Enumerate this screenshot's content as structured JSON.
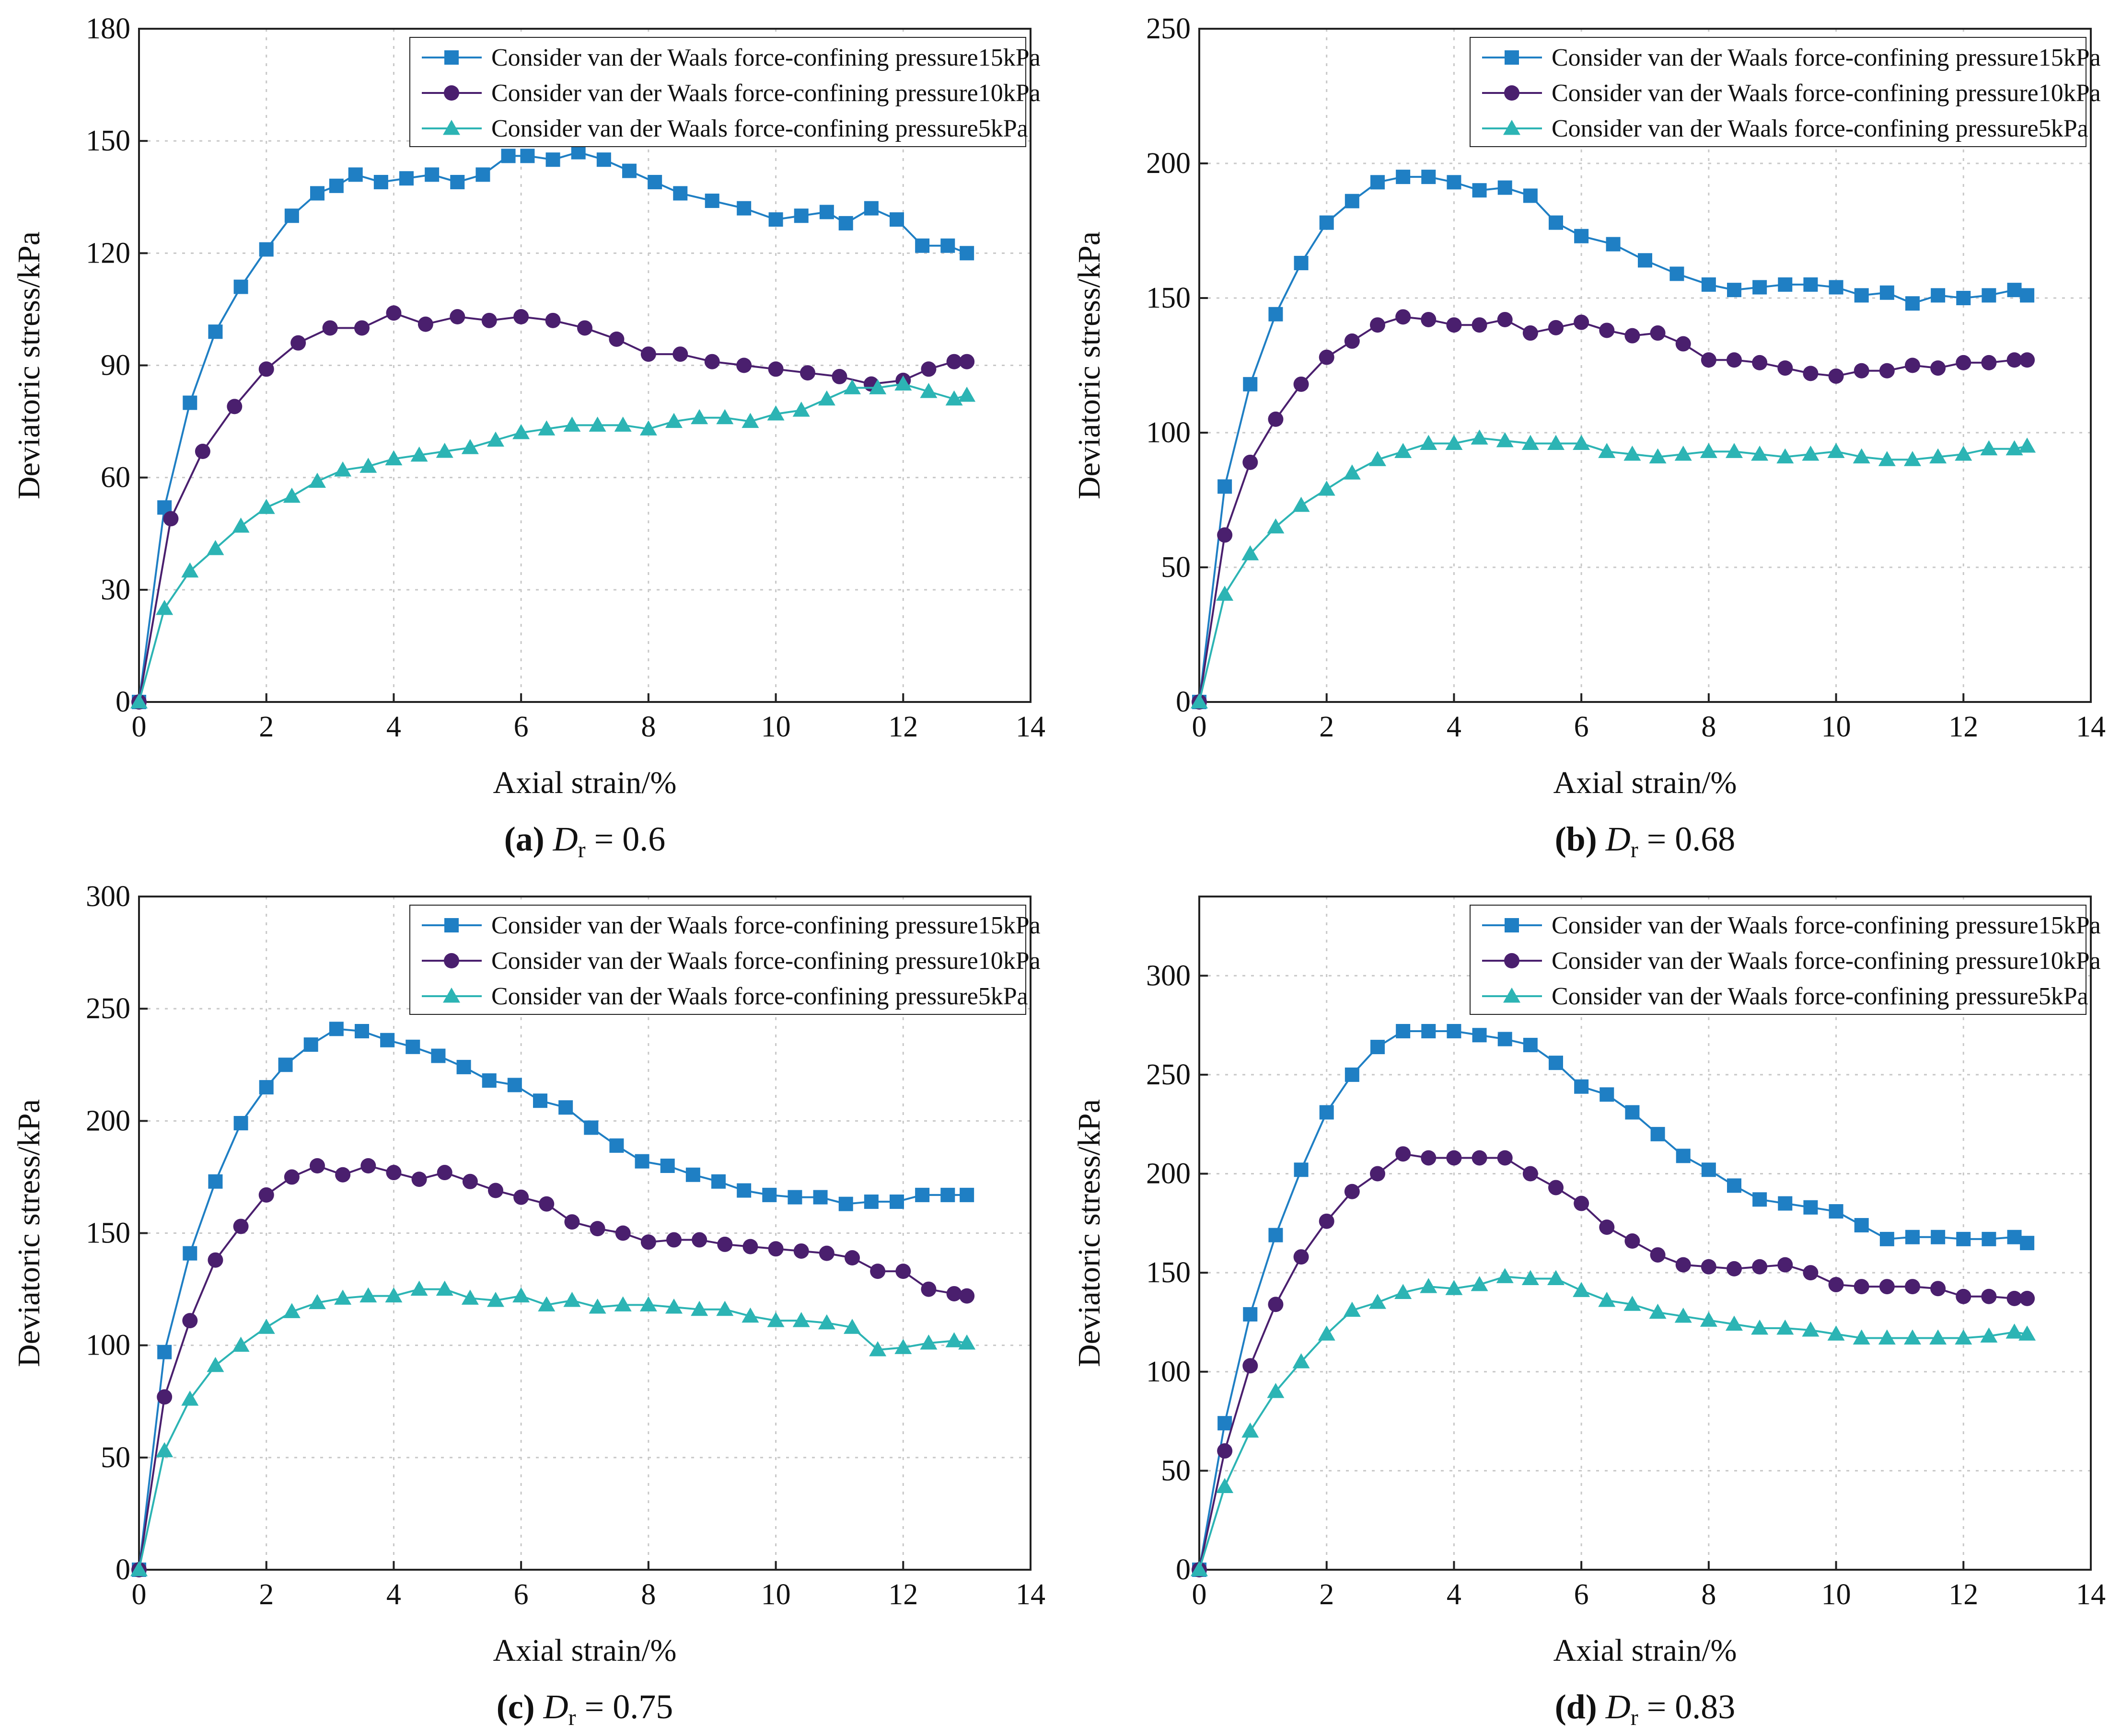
{
  "chart_data": [
    {
      "type": "line",
      "caption": {
        "label": "(a)",
        "variable": "D",
        "subscript": "r",
        "value": "= 0.6"
      },
      "xlabel": "Axial strain/%",
      "ylabel": "Deviatoric stress/kPa",
      "xlim": [
        0,
        14
      ],
      "ylim": [
        0,
        180
      ],
      "xticks": [
        0,
        2,
        4,
        6,
        8,
        10,
        12,
        14
      ],
      "yticks": [
        0,
        30,
        60,
        90,
        120,
        150,
        180
      ],
      "series": [
        {
          "name": "Consider van der Waals force-confining pressure15kPa",
          "color": "#1f7fc4",
          "marker": "square",
          "x": [
            0,
            0.4,
            0.8,
            1.2,
            1.6,
            2.0,
            2.4,
            2.8,
            3.1,
            3.4,
            3.8,
            4.2,
            4.6,
            5.0,
            5.4,
            5.8,
            6.1,
            6.5,
            6.9,
            7.3,
            7.7,
            8.1,
            8.5,
            9.0,
            9.5,
            10.0,
            10.4,
            10.8,
            11.1,
            11.5,
            11.9,
            12.3,
            12.7,
            13.0
          ],
          "y": [
            0,
            52,
            80,
            99,
            111,
            121,
            130,
            136,
            138,
            141,
            139,
            140,
            141,
            139,
            141,
            146,
            146,
            145,
            147,
            145,
            142,
            139,
            136,
            134,
            132,
            129,
            130,
            131,
            128,
            132,
            129,
            122,
            122,
            120
          ]
        },
        {
          "name": "Consider van der Waals force-confining pressure10kPa",
          "color": "#4a1f6e",
          "marker": "circle",
          "x": [
            0,
            0.5,
            1.0,
            1.5,
            2.0,
            2.5,
            3.0,
            3.5,
            4.0,
            4.5,
            5.0,
            5.5,
            6.0,
            6.5,
            7.0,
            7.5,
            8.0,
            8.5,
            9.0,
            9.5,
            10.0,
            10.5,
            11.0,
            11.5,
            12.0,
            12.4,
            12.8,
            13.0
          ],
          "y": [
            0,
            49,
            67,
            79,
            89,
            96,
            100,
            100,
            104,
            101,
            103,
            102,
            103,
            102,
            100,
            97,
            93,
            93,
            91,
            90,
            89,
            88,
            87,
            85,
            86,
            89,
            91,
            91
          ]
        },
        {
          "name": "Consider van der Waals force-confining pressure5kPa",
          "color": "#2cb4b4",
          "marker": "triangle",
          "x": [
            0,
            0.4,
            0.8,
            1.2,
            1.6,
            2.0,
            2.4,
            2.8,
            3.2,
            3.6,
            4.0,
            4.4,
            4.8,
            5.2,
            5.6,
            6.0,
            6.4,
            6.8,
            7.2,
            7.6,
            8.0,
            8.4,
            8.8,
            9.2,
            9.6,
            10.0,
            10.4,
            10.8,
            11.2,
            11.6,
            12.0,
            12.4,
            12.8,
            13.0
          ],
          "y": [
            0,
            25,
            35,
            41,
            47,
            52,
            55,
            59,
            62,
            63,
            65,
            66,
            67,
            68,
            70,
            72,
            73,
            74,
            74,
            74,
            73,
            75,
            76,
            76,
            75,
            77,
            78,
            81,
            84,
            84,
            85,
            83,
            81,
            82
          ]
        }
      ]
    },
    {
      "type": "line",
      "caption": {
        "label": "(b)",
        "variable": "D",
        "subscript": "r",
        "value": "= 0.68"
      },
      "xlabel": "Axial strain/%",
      "ylabel": "Deviatoric stress/kPa",
      "xlim": [
        0,
        14
      ],
      "ylim": [
        0,
        250
      ],
      "xticks": [
        0,
        2,
        4,
        6,
        8,
        10,
        12,
        14
      ],
      "yticks": [
        0,
        50,
        100,
        150,
        200,
        250
      ],
      "series": [
        {
          "name": "Consider van der Waals force-confining pressure15kPa",
          "color": "#1f7fc4",
          "marker": "square",
          "x": [
            0,
            0.4,
            0.8,
            1.2,
            1.6,
            2.0,
            2.4,
            2.8,
            3.2,
            3.6,
            4.0,
            4.4,
            4.8,
            5.2,
            5.6,
            6.0,
            6.5,
            7.0,
            7.5,
            8.0,
            8.4,
            8.8,
            9.2,
            9.6,
            10.0,
            10.4,
            10.8,
            11.2,
            11.6,
            12.0,
            12.4,
            12.8,
            13.0
          ],
          "y": [
            0,
            80,
            118,
            144,
            163,
            178,
            186,
            193,
            195,
            195,
            193,
            190,
            191,
            188,
            178,
            173,
            170,
            164,
            159,
            155,
            153,
            154,
            155,
            155,
            154,
            151,
            152,
            148,
            151,
            150,
            151,
            153,
            151
          ]
        },
        {
          "name": "Consider van der Waals force-confining pressure10kPa",
          "color": "#4a1f6e",
          "marker": "circle",
          "x": [
            0,
            0.4,
            0.8,
            1.2,
            1.6,
            2.0,
            2.4,
            2.8,
            3.2,
            3.6,
            4.0,
            4.4,
            4.8,
            5.2,
            5.6,
            6.0,
            6.4,
            6.8,
            7.2,
            7.6,
            8.0,
            8.4,
            8.8,
            9.2,
            9.6,
            10.0,
            10.4,
            10.8,
            11.2,
            11.6,
            12.0,
            12.4,
            12.8,
            13.0
          ],
          "y": [
            0,
            62,
            89,
            105,
            118,
            128,
            134,
            140,
            143,
            142,
            140,
            140,
            142,
            137,
            139,
            141,
            138,
            136,
            137,
            133,
            127,
            127,
            126,
            124,
            122,
            121,
            123,
            123,
            125,
            124,
            126,
            126,
            127,
            127
          ]
        },
        {
          "name": "Consider van der Waals force-confining pressure5kPa",
          "color": "#2cb4b4",
          "marker": "triangle",
          "x": [
            0,
            0.4,
            0.8,
            1.2,
            1.6,
            2.0,
            2.4,
            2.8,
            3.2,
            3.6,
            4.0,
            4.4,
            4.8,
            5.2,
            5.6,
            6.0,
            6.4,
            6.8,
            7.2,
            7.6,
            8.0,
            8.4,
            8.8,
            9.2,
            9.6,
            10.0,
            10.4,
            10.8,
            11.2,
            11.6,
            12.0,
            12.4,
            12.8,
            13.0
          ],
          "y": [
            0,
            40,
            55,
            65,
            73,
            79,
            85,
            90,
            93,
            96,
            96,
            98,
            97,
            96,
            96,
            96,
            93,
            92,
            91,
            92,
            93,
            93,
            92,
            91,
            92,
            93,
            91,
            90,
            90,
            91,
            92,
            94,
            94,
            95
          ]
        }
      ]
    },
    {
      "type": "line",
      "caption": {
        "label": "(c)",
        "variable": "D",
        "subscript": "r",
        "value": "= 0.75"
      },
      "xlabel": "Axial strain/%",
      "ylabel": "Deviatoric stress/kPa",
      "xlim": [
        0,
        14
      ],
      "ylim": [
        0,
        300
      ],
      "xticks": [
        0,
        2,
        4,
        6,
        8,
        10,
        12,
        14
      ],
      "yticks": [
        0,
        50,
        100,
        150,
        200,
        250,
        300
      ],
      "series": [
        {
          "name": "Consider van der Waals force-confining pressure15kPa",
          "color": "#1f7fc4",
          "marker": "square",
          "x": [
            0,
            0.4,
            0.8,
            1.2,
            1.6,
            2.0,
            2.3,
            2.7,
            3.1,
            3.5,
            3.9,
            4.3,
            4.7,
            5.1,
            5.5,
            5.9,
            6.3,
            6.7,
            7.1,
            7.5,
            7.9,
            8.3,
            8.7,
            9.1,
            9.5,
            9.9,
            10.3,
            10.7,
            11.1,
            11.5,
            11.9,
            12.3,
            12.7,
            13.0
          ],
          "y": [
            0,
            97,
            141,
            173,
            199,
            215,
            225,
            234,
            241,
            240,
            236,
            233,
            229,
            224,
            218,
            216,
            209,
            206,
            197,
            189,
            182,
            180,
            176,
            173,
            169,
            167,
            166,
            166,
            163,
            164,
            164,
            167,
            167,
            167
          ]
        },
        {
          "name": "Consider van der Waals force-confining pressure10kPa",
          "color": "#4a1f6e",
          "marker": "circle",
          "x": [
            0,
            0.4,
            0.8,
            1.2,
            1.6,
            2.0,
            2.4,
            2.8,
            3.2,
            3.6,
            4.0,
            4.4,
            4.8,
            5.2,
            5.6,
            6.0,
            6.4,
            6.8,
            7.2,
            7.6,
            8.0,
            8.4,
            8.8,
            9.2,
            9.6,
            10.0,
            10.4,
            10.8,
            11.2,
            11.6,
            12.0,
            12.4,
            12.8,
            13.0
          ],
          "y": [
            0,
            77,
            111,
            138,
            153,
            167,
            175,
            180,
            176,
            180,
            177,
            174,
            177,
            173,
            169,
            166,
            163,
            155,
            152,
            150,
            146,
            147,
            147,
            145,
            144,
            143,
            142,
            141,
            139,
            133,
            133,
            125,
            123,
            122
          ]
        },
        {
          "name": "Consider van der Waals force-confining pressure5kPa",
          "color": "#2cb4b4",
          "marker": "triangle",
          "x": [
            0,
            0.4,
            0.8,
            1.2,
            1.6,
            2.0,
            2.4,
            2.8,
            3.2,
            3.6,
            4.0,
            4.4,
            4.8,
            5.2,
            5.6,
            6.0,
            6.4,
            6.8,
            7.2,
            7.6,
            8.0,
            8.4,
            8.8,
            9.2,
            9.6,
            10.0,
            10.4,
            10.8,
            11.2,
            11.6,
            12.0,
            12.4,
            12.8,
            13.0
          ],
          "y": [
            0,
            53,
            76,
            91,
            100,
            108,
            115,
            119,
            121,
            122,
            122,
            125,
            125,
            121,
            120,
            122,
            118,
            120,
            117,
            118,
            118,
            117,
            116,
            116,
            113,
            111,
            111,
            110,
            108,
            98,
            99,
            101,
            102,
            101
          ]
        }
      ]
    },
    {
      "type": "line",
      "caption": {
        "label": "(d)",
        "variable": "D",
        "subscript": "r",
        "value": "= 0.83"
      },
      "xlabel": "Axial strain/%",
      "ylabel": "Deviatoric stress/kPa",
      "xlim": [
        0,
        14
      ],
      "ylim": [
        0,
        340
      ],
      "xticks": [
        0,
        2,
        4,
        6,
        8,
        10,
        12,
        14
      ],
      "yticks": [
        0,
        50,
        100,
        150,
        200,
        250,
        300
      ],
      "series": [
        {
          "name": "Consider van der Waals force-confining pressure15kPa",
          "color": "#1f7fc4",
          "marker": "square",
          "x": [
            0,
            0.4,
            0.8,
            1.2,
            1.6,
            2.0,
            2.4,
            2.8,
            3.2,
            3.6,
            4.0,
            4.4,
            4.8,
            5.2,
            5.6,
            6.0,
            6.4,
            6.8,
            7.2,
            7.6,
            8.0,
            8.4,
            8.8,
            9.2,
            9.6,
            10.0,
            10.4,
            10.8,
            11.2,
            11.6,
            12.0,
            12.4,
            12.8,
            13.0
          ],
          "y": [
            0,
            74,
            129,
            169,
            202,
            231,
            250,
            264,
            272,
            272,
            272,
            270,
            268,
            265,
            256,
            244,
            240,
            231,
            220,
            209,
            202,
            194,
            187,
            185,
            183,
            181,
            174,
            167,
            168,
            168,
            167,
            167,
            168,
            165
          ]
        },
        {
          "name": "Consider van der Waals force-confining pressure10kPa",
          "color": "#4a1f6e",
          "marker": "circle",
          "x": [
            0,
            0.4,
            0.8,
            1.2,
            1.6,
            2.0,
            2.4,
            2.8,
            3.2,
            3.6,
            4.0,
            4.4,
            4.8,
            5.2,
            5.6,
            6.0,
            6.4,
            6.8,
            7.2,
            7.6,
            8.0,
            8.4,
            8.8,
            9.2,
            9.6,
            10.0,
            10.4,
            10.8,
            11.2,
            11.6,
            12.0,
            12.4,
            12.8,
            13.0
          ],
          "y": [
            0,
            60,
            103,
            134,
            158,
            176,
            191,
            200,
            210,
            208,
            208,
            208,
            208,
            200,
            193,
            185,
            173,
            166,
            159,
            154,
            153,
            152,
            153,
            154,
            150,
            144,
            143,
            143,
            143,
            142,
            138,
            138,
            137,
            137
          ]
        },
        {
          "name": "Consider van der Waals force-confining pressure5kPa",
          "color": "#2cb4b4",
          "marker": "triangle",
          "x": [
            0,
            0.4,
            0.8,
            1.2,
            1.6,
            2.0,
            2.4,
            2.8,
            3.2,
            3.6,
            4.0,
            4.4,
            4.8,
            5.2,
            5.6,
            6.0,
            6.4,
            6.8,
            7.2,
            7.6,
            8.0,
            8.4,
            8.8,
            9.2,
            9.6,
            10.0,
            10.4,
            10.8,
            11.2,
            11.6,
            12.0,
            12.4,
            12.8,
            13.0
          ],
          "y": [
            0,
            42,
            70,
            90,
            105,
            119,
            131,
            135,
            140,
            143,
            142,
            144,
            148,
            147,
            147,
            141,
            136,
            134,
            130,
            128,
            126,
            124,
            122,
            122,
            121,
            119,
            117,
            117,
            117,
            117,
            117,
            118,
            120,
            119
          ]
        }
      ]
    }
  ]
}
